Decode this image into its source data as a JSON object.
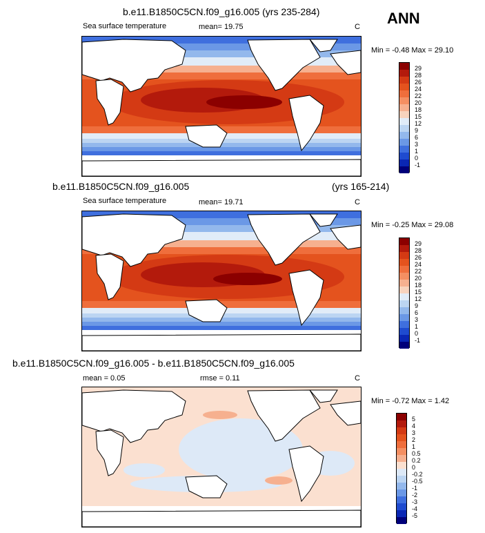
{
  "ann_label": "ANN",
  "panels": [
    {
      "title": "b.e11.B1850C5CN.f09_g16.005 (yrs 235-284)",
      "variable": "Sea surface temperature",
      "stat1": "mean=  19.75",
      "units": "C",
      "minmax": "Min =  -0.48 Max =  29.10",
      "levels": [
        "29",
        "28",
        "26",
        "24",
        "22",
        "20",
        "18",
        "15",
        "12",
        "9",
        "6",
        "3",
        "1",
        "0",
        "-1"
      ],
      "colors": [
        "#8b0000",
        "#b31a0c",
        "#d43a14",
        "#e4531e",
        "#ef6e3c",
        "#f48f62",
        "#f6b08f",
        "#f8d3bd",
        "#e1ecf8",
        "#bcd5f2",
        "#93b8ec",
        "#6b98e6",
        "#3f6fde",
        "#1f4bcf",
        "#0a27b4",
        "#00007a"
      ]
    },
    {
      "title": "b.e11.B1850C5CN.f09_g16.005",
      "title_right": "(yrs 165-214)",
      "variable": "Sea surface temperature",
      "stat1": "mean=  19.71",
      "units": "C",
      "minmax": "Min =  -0.25 Max =  29.08",
      "levels": [
        "29",
        "28",
        "26",
        "24",
        "22",
        "20",
        "18",
        "15",
        "12",
        "9",
        "6",
        "3",
        "1",
        "0",
        "-1"
      ],
      "colors": [
        "#8b0000",
        "#b31a0c",
        "#d43a14",
        "#e4531e",
        "#ef6e3c",
        "#f48f62",
        "#f6b08f",
        "#f8d3bd",
        "#e1ecf8",
        "#bcd5f2",
        "#93b8ec",
        "#6b98e6",
        "#3f6fde",
        "#1f4bcf",
        "#0a27b4",
        "#00007a"
      ]
    },
    {
      "title": "b.e11.B1850C5CN.f09_g16.005 - b.e11.B1850C5CN.f09_g16.005",
      "stat1": "mean =  0.05",
      "stat2": "rmse =  0.11",
      "units": "C",
      "minmax": "Min =  -0.72 Max =  1.42",
      "levels": [
        "5",
        "4",
        "3",
        "2",
        "1",
        "0.5",
        "0.2",
        "0",
        "-0.2",
        "-0.5",
        "-1",
        "-2",
        "-3",
        "-4",
        "-5"
      ],
      "colors": [
        "#8b0000",
        "#b31a0c",
        "#d43a14",
        "#e4531e",
        "#ef6e3c",
        "#f48f62",
        "#f6b08f",
        "#fbe0d0",
        "#dde9f7",
        "#bcd5f2",
        "#93b8ec",
        "#6b98e6",
        "#3f6fde",
        "#1f4bcf",
        "#0a27b4",
        "#00007a"
      ]
    }
  ]
}
